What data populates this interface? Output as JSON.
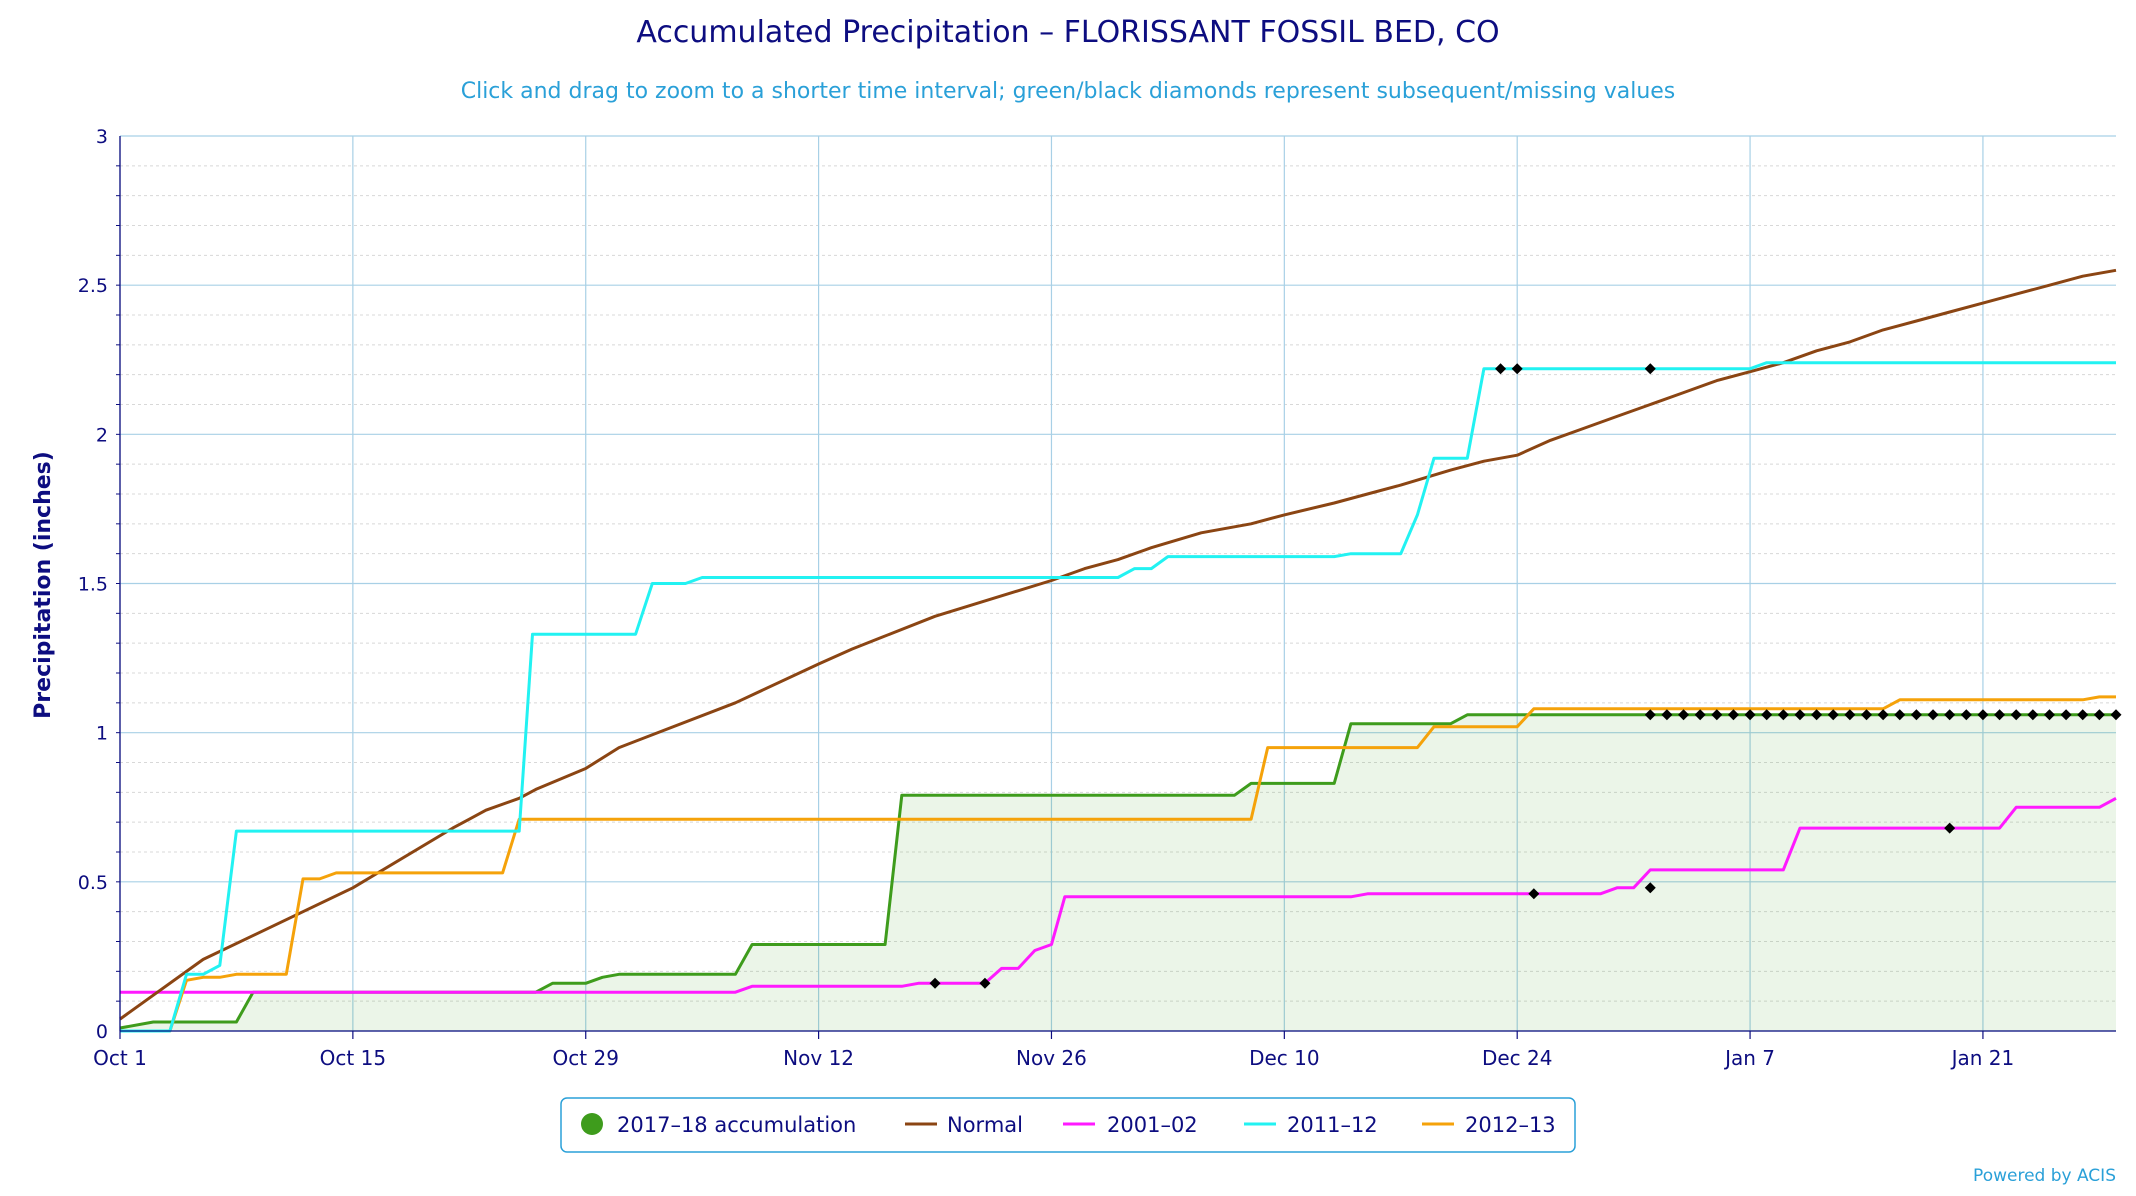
{
  "chart_data": {
    "type": "line",
    "title": "Accumulated Precipitation – FLORISSANT FOSSIL BED, CO",
    "subtitle": "Click and drag to zoom to a shorter time interval; green/black diamonds represent subsequent/missing values",
    "ylabel": "Precipitation (inches)",
    "xlabel": "",
    "ylim": [
      0,
      3
    ],
    "xlim": [
      0,
      120
    ],
    "x_ticks": [
      {
        "day": 0,
        "label": "Oct 1"
      },
      {
        "day": 14,
        "label": "Oct 15"
      },
      {
        "day": 28,
        "label": "Oct 29"
      },
      {
        "day": 42,
        "label": "Nov 12"
      },
      {
        "day": 56,
        "label": "Nov 26"
      },
      {
        "day": 70,
        "label": "Dec 10"
      },
      {
        "day": 84,
        "label": "Dec 24"
      },
      {
        "day": 98,
        "label": "Jan 7"
      },
      {
        "day": 112,
        "label": "Jan 21"
      }
    ],
    "y_ticks": [
      {
        "value": 0,
        "label": "0"
      },
      {
        "value": 0.5,
        "label": "0.5"
      },
      {
        "value": 1,
        "label": "1"
      },
      {
        "value": 1.5,
        "label": "1.5"
      },
      {
        "value": 2,
        "label": "2"
      },
      {
        "value": 2.5,
        "label": "2.5"
      },
      {
        "value": 3,
        "label": "3"
      }
    ],
    "grid": true,
    "legend_position": "bottom-center",
    "series": [
      {
        "name": "2017–18 accumulation",
        "color": "#3e9c1c",
        "style": "area",
        "points": [
          [
            0,
            0.01
          ],
          [
            2,
            0.03
          ],
          [
            7,
            0.03
          ],
          [
            8,
            0.13
          ],
          [
            25,
            0.13
          ],
          [
            26,
            0.16
          ],
          [
            28,
            0.16
          ],
          [
            29,
            0.18
          ],
          [
            30,
            0.19
          ],
          [
            37,
            0.19
          ],
          [
            38,
            0.29
          ],
          [
            46,
            0.29
          ],
          [
            47,
            0.79
          ],
          [
            67,
            0.79
          ],
          [
            68,
            0.83
          ],
          [
            73,
            0.83
          ],
          [
            74,
            1.03
          ],
          [
            80,
            1.03
          ],
          [
            81,
            1.06
          ],
          [
            120,
            1.06
          ]
        ],
        "markers": [
          92,
          93,
          94,
          95,
          96,
          97,
          98,
          99,
          100,
          101,
          102,
          103,
          104,
          105,
          106,
          107,
          108,
          109,
          110,
          111,
          112,
          113,
          114,
          115,
          116,
          117,
          118,
          119,
          120
        ]
      },
      {
        "name": "Normal",
        "color": "#8b4513",
        "style": "line",
        "points": [
          [
            0,
            0.04
          ],
          [
            2,
            0.12
          ],
          [
            5,
            0.24
          ],
          [
            14,
            0.48
          ],
          [
            20,
            0.68
          ],
          [
            21,
            0.71
          ],
          [
            22,
            0.74
          ],
          [
            24,
            0.78
          ],
          [
            25,
            0.81
          ],
          [
            28,
            0.88
          ],
          [
            30,
            0.95
          ],
          [
            37,
            1.1
          ],
          [
            42,
            1.23
          ],
          [
            44,
            1.28
          ],
          [
            49,
            1.39
          ],
          [
            56,
            1.51
          ],
          [
            58,
            1.55
          ],
          [
            60,
            1.58
          ],
          [
            62,
            1.62
          ],
          [
            65,
            1.67
          ],
          [
            68,
            1.7
          ],
          [
            70,
            1.73
          ],
          [
            73,
            1.77
          ],
          [
            75,
            1.8
          ],
          [
            77,
            1.83
          ],
          [
            80,
            1.88
          ],
          [
            82,
            1.91
          ],
          [
            84,
            1.93
          ],
          [
            86,
            1.98
          ],
          [
            88,
            2.02
          ],
          [
            90,
            2.06
          ],
          [
            92,
            2.1
          ],
          [
            94,
            2.14
          ],
          [
            96,
            2.18
          ],
          [
            98,
            2.21
          ],
          [
            100,
            2.24
          ],
          [
            102,
            2.28
          ],
          [
            104,
            2.31
          ],
          [
            106,
            2.35
          ],
          [
            108,
            2.38
          ],
          [
            110,
            2.41
          ],
          [
            112,
            2.44
          ],
          [
            114,
            2.47
          ],
          [
            116,
            2.5
          ],
          [
            118,
            2.53
          ],
          [
            120,
            2.55
          ]
        ]
      },
      {
        "name": "2001–02",
        "color": "#ff1aff",
        "style": "line",
        "points": [
          [
            0,
            0.13
          ],
          [
            37,
            0.13
          ],
          [
            38,
            0.15
          ],
          [
            47,
            0.15
          ],
          [
            48,
            0.16
          ],
          [
            52,
            0.16
          ],
          [
            53,
            0.21
          ],
          [
            54,
            0.21
          ],
          [
            55,
            0.27
          ],
          [
            56,
            0.29
          ],
          [
            56.8,
            0.45
          ],
          [
            74,
            0.45
          ],
          [
            75,
            0.46
          ],
          [
            89,
            0.46
          ],
          [
            90,
            0.48
          ],
          [
            91,
            0.48
          ],
          [
            92,
            0.54
          ],
          [
            100,
            0.54
          ],
          [
            101,
            0.68
          ],
          [
            113,
            0.68
          ],
          [
            114,
            0.75
          ],
          [
            119,
            0.75
          ],
          [
            120,
            0.78
          ]
        ],
        "markers": [
          [
            49,
            0.16
          ],
          [
            52,
            0.16
          ],
          [
            85,
            0.46
          ],
          [
            92,
            0.48
          ],
          [
            110,
            0.68
          ]
        ]
      },
      {
        "name": "2011–12",
        "color": "#22f2f2",
        "style": "line",
        "points": [
          [
            0,
            0
          ],
          [
            3,
            0
          ],
          [
            4,
            0.19
          ],
          [
            5,
            0.19
          ],
          [
            6,
            0.22
          ],
          [
            7,
            0.67
          ],
          [
            24,
            0.67
          ],
          [
            24.8,
            1.33
          ],
          [
            31,
            1.33
          ],
          [
            32,
            1.5
          ],
          [
            34,
            1.5
          ],
          [
            35,
            1.52
          ],
          [
            60,
            1.52
          ],
          [
            61,
            1.55
          ],
          [
            62,
            1.55
          ],
          [
            63,
            1.59
          ],
          [
            73,
            1.59
          ],
          [
            74,
            1.6
          ],
          [
            77,
            1.6
          ],
          [
            78,
            1.73
          ],
          [
            79,
            1.92
          ],
          [
            81,
            1.92
          ],
          [
            82,
            2.22
          ],
          [
            98,
            2.22
          ],
          [
            99,
            2.24
          ],
          [
            120,
            2.24
          ]
        ],
        "markers": [
          [
            83,
            2.22
          ],
          [
            84,
            2.22
          ],
          [
            92,
            2.22
          ]
        ]
      },
      {
        "name": "2012–13",
        "color": "#f5a20a",
        "style": "line",
        "points": [
          [
            0,
            0
          ],
          [
            3,
            0
          ],
          [
            4,
            0.17
          ],
          [
            5,
            0.18
          ],
          [
            6,
            0.18
          ],
          [
            7,
            0.19
          ],
          [
            10,
            0.19
          ],
          [
            11,
            0.51
          ],
          [
            12,
            0.51
          ],
          [
            13,
            0.53
          ],
          [
            23,
            0.53
          ],
          [
            24,
            0.71
          ],
          [
            68,
            0.71
          ],
          [
            69,
            0.95
          ],
          [
            78,
            0.95
          ],
          [
            79,
            1.02
          ],
          [
            84,
            1.02
          ],
          [
            85,
            1.08
          ],
          [
            106,
            1.08
          ],
          [
            107,
            1.11
          ],
          [
            118,
            1.11
          ],
          [
            119,
            1.12
          ],
          [
            120,
            1.12
          ]
        ]
      }
    ]
  },
  "credit": "Powered by ACIS"
}
